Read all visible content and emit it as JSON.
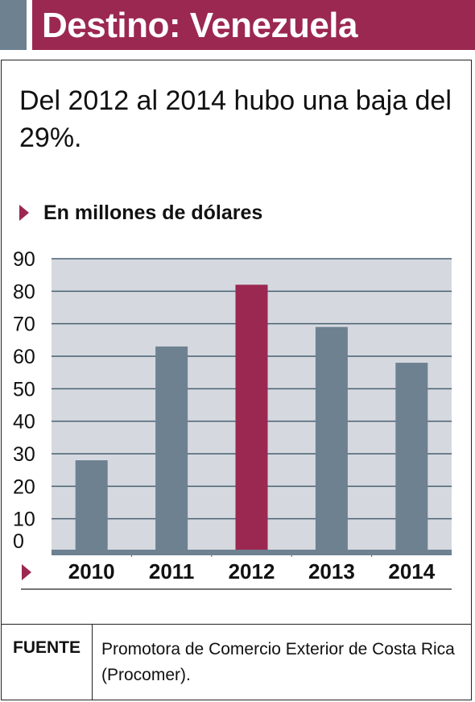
{
  "header": {
    "title": "Destino: Venezuela"
  },
  "subtitle": "Del 2012 al 2014 hubo una baja del 29%.",
  "unit_label": "En millones de dólares",
  "colors": {
    "bar_default": "#6d8191",
    "bar_highlight": "#9b2851",
    "plot_background": "#d5d9df",
    "grid": "#4a6072",
    "accent": "#9b2851"
  },
  "chart_data": {
    "type": "bar",
    "categories": [
      "2010",
      "2011",
      "2012",
      "2013",
      "2014"
    ],
    "values": [
      28,
      63,
      82,
      69,
      58
    ],
    "highlight": "2012",
    "ylim": [
      0,
      90
    ],
    "yticks": [
      0,
      10,
      20,
      30,
      40,
      50,
      60,
      70,
      80,
      90
    ],
    "grid": true
  },
  "footer": {
    "source_label": "FUENTE",
    "source_text": "Promotora de Comercio Exterior de Costa Rica (Procomer)."
  }
}
